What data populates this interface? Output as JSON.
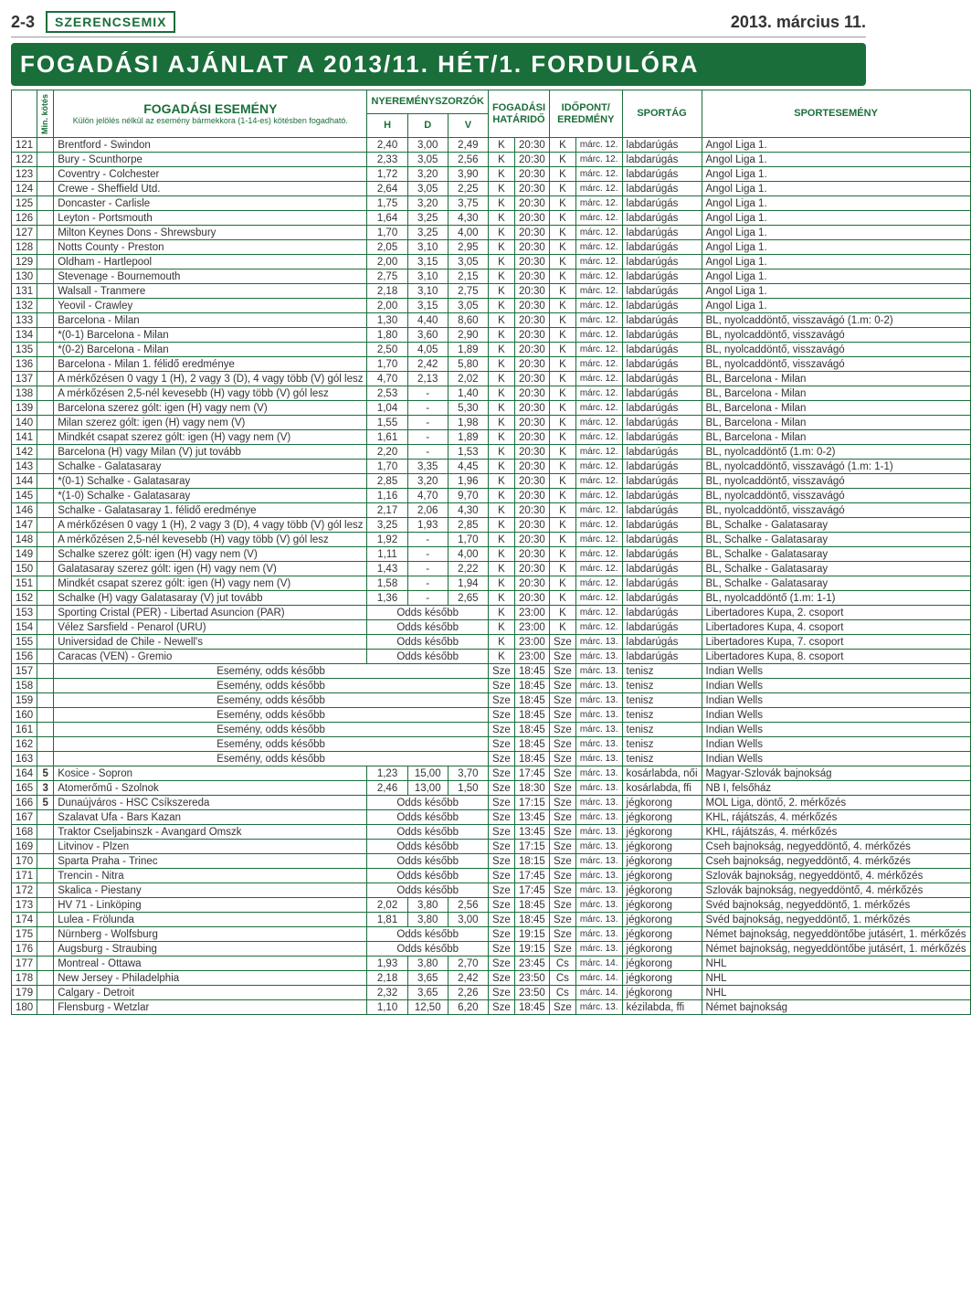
{
  "header": {
    "page_num": "2-3",
    "brand": "SZERENCSEMIX",
    "date": "2013. március 11."
  },
  "title": "FOGADÁSI AJÁNLAT A 2013/11. HÉT/1. FORDULÓRA",
  "columns": {
    "min": "Min. kötés",
    "event": "FOGADÁSI ESEMÉNY",
    "event_sub": "Külön jelölés nélkül az esemény bármekkora (1-14-es) kötésben fogadható.",
    "multipliers": "NYEREMÉNYSZORZÓK",
    "h": "H",
    "d": "D",
    "v": "V",
    "deadline": "FOGADÁSI HATÁRIDŐ",
    "result_time": "IDŐPONT/ EREDMÉNY",
    "sport": "SPORTÁG",
    "comp": "SPORTESEMÉNY"
  },
  "rows": [
    {
      "n": "121",
      "min": "",
      "e": "Brentford - Swindon",
      "h": "2,40",
      "d": "3,00",
      "v": "2,49",
      "d1": "K",
      "d2": "20:30",
      "r1": "K",
      "r2": "márc. 12.",
      "s": "labdarúgás",
      "c": "Angol Liga 1."
    },
    {
      "n": "122",
      "min": "",
      "e": "Bury - Scunthorpe",
      "h": "2,33",
      "d": "3,05",
      "v": "2,56",
      "d1": "K",
      "d2": "20:30",
      "r1": "K",
      "r2": "márc. 12.",
      "s": "labdarúgás",
      "c": "Angol Liga 1."
    },
    {
      "n": "123",
      "min": "",
      "e": "Coventry - Colchester",
      "h": "1,72",
      "d": "3,20",
      "v": "3,90",
      "d1": "K",
      "d2": "20:30",
      "r1": "K",
      "r2": "márc. 12.",
      "s": "labdarúgás",
      "c": "Angol Liga 1."
    },
    {
      "n": "124",
      "min": "",
      "e": "Crewe - Sheffield Utd.",
      "h": "2,64",
      "d": "3,05",
      "v": "2,25",
      "d1": "K",
      "d2": "20:30",
      "r1": "K",
      "r2": "márc. 12.",
      "s": "labdarúgás",
      "c": "Angol Liga 1."
    },
    {
      "n": "125",
      "min": "",
      "e": "Doncaster - Carlisle",
      "h": "1,75",
      "d": "3,20",
      "v": "3,75",
      "d1": "K",
      "d2": "20:30",
      "r1": "K",
      "r2": "márc. 12.",
      "s": "labdarúgás",
      "c": "Angol Liga 1."
    },
    {
      "n": "126",
      "min": "",
      "e": "Leyton - Portsmouth",
      "h": "1,64",
      "d": "3,25",
      "v": "4,30",
      "d1": "K",
      "d2": "20:30",
      "r1": "K",
      "r2": "márc. 12.",
      "s": "labdarúgás",
      "c": "Angol Liga 1."
    },
    {
      "n": "127",
      "min": "",
      "e": "Milton Keynes Dons - Shrewsbury",
      "h": "1,70",
      "d": "3,25",
      "v": "4,00",
      "d1": "K",
      "d2": "20:30",
      "r1": "K",
      "r2": "márc. 12.",
      "s": "labdarúgás",
      "c": "Angol Liga 1."
    },
    {
      "n": "128",
      "min": "",
      "e": "Notts County - Preston",
      "h": "2,05",
      "d": "3,10",
      "v": "2,95",
      "d1": "K",
      "d2": "20:30",
      "r1": "K",
      "r2": "márc. 12.",
      "s": "labdarúgás",
      "c": "Angol Liga 1."
    },
    {
      "n": "129",
      "min": "",
      "e": "Oldham - Hartlepool",
      "h": "2,00",
      "d": "3,15",
      "v": "3,05",
      "d1": "K",
      "d2": "20:30",
      "r1": "K",
      "r2": "márc. 12.",
      "s": "labdarúgás",
      "c": "Angol Liga 1."
    },
    {
      "n": "130",
      "min": "",
      "e": "Stevenage - Bournemouth",
      "h": "2,75",
      "d": "3,10",
      "v": "2,15",
      "d1": "K",
      "d2": "20:30",
      "r1": "K",
      "r2": "márc. 12.",
      "s": "labdarúgás",
      "c": "Angol Liga 1."
    },
    {
      "n": "131",
      "min": "",
      "e": "Walsall - Tranmere",
      "h": "2,18",
      "d": "3,10",
      "v": "2,75",
      "d1": "K",
      "d2": "20:30",
      "r1": "K",
      "r2": "márc. 12.",
      "s": "labdarúgás",
      "c": "Angol Liga 1."
    },
    {
      "n": "132",
      "min": "",
      "e": "Yeovil - Crawley",
      "h": "2,00",
      "d": "3,15",
      "v": "3,05",
      "d1": "K",
      "d2": "20:30",
      "r1": "K",
      "r2": "márc. 12.",
      "s": "labdarúgás",
      "c": "Angol Liga 1."
    },
    {
      "n": "133",
      "min": "",
      "e": "Barcelona - Milan",
      "h": "1,30",
      "d": "4,40",
      "v": "8,60",
      "d1": "K",
      "d2": "20:30",
      "r1": "K",
      "r2": "márc. 12.",
      "s": "labdarúgás",
      "c": "BL, nyolcaddöntő, visszavágó (1.m: 0-2)"
    },
    {
      "n": "134",
      "min": "",
      "e": "*(0-1) Barcelona - Milan",
      "h": "1,80",
      "d": "3,60",
      "v": "2,90",
      "d1": "K",
      "d2": "20:30",
      "r1": "K",
      "r2": "márc. 12.",
      "s": "labdarúgás",
      "c": "BL, nyolcaddöntő, visszavágó"
    },
    {
      "n": "135",
      "min": "",
      "e": "*(0-2) Barcelona - Milan",
      "h": "2,50",
      "d": "4,05",
      "v": "1,89",
      "d1": "K",
      "d2": "20:30",
      "r1": "K",
      "r2": "márc. 12.",
      "s": "labdarúgás",
      "c": "BL, nyolcaddöntő, visszavágó"
    },
    {
      "n": "136",
      "min": "",
      "e": "Barcelona - Milan 1. félidő eredménye",
      "h": "1,70",
      "d": "2,42",
      "v": "5,80",
      "d1": "K",
      "d2": "20:30",
      "r1": "K",
      "r2": "márc. 12.",
      "s": "labdarúgás",
      "c": "BL, nyolcaddöntő, visszavágó"
    },
    {
      "n": "137",
      "min": "",
      "e": "A mérkőzésen 0 vagy 1 (H), 2 vagy 3 (D), 4 vagy több (V) gól lesz",
      "h": "4,70",
      "d": "2,13",
      "v": "2,02",
      "d1": "K",
      "d2": "20:30",
      "r1": "K",
      "r2": "márc. 12.",
      "s": "labdarúgás",
      "c": "BL, Barcelona - Milan"
    },
    {
      "n": "138",
      "min": "",
      "e": "A mérkőzésen 2,5-nél kevesebb (H) vagy több (V) gól lesz",
      "h": "2,53",
      "d": "-",
      "v": "1,40",
      "d1": "K",
      "d2": "20:30",
      "r1": "K",
      "r2": "márc. 12.",
      "s": "labdarúgás",
      "c": "BL, Barcelona - Milan"
    },
    {
      "n": "139",
      "min": "",
      "e": "Barcelona szerez gólt: igen (H) vagy nem (V)",
      "h": "1,04",
      "d": "-",
      "v": "5,30",
      "d1": "K",
      "d2": "20:30",
      "r1": "K",
      "r2": "márc. 12.",
      "s": "labdarúgás",
      "c": "BL, Barcelona - Milan"
    },
    {
      "n": "140",
      "min": "",
      "e": "Milan szerez gólt: igen (H) vagy nem (V)",
      "h": "1,55",
      "d": "-",
      "v": "1,98",
      "d1": "K",
      "d2": "20:30",
      "r1": "K",
      "r2": "márc. 12.",
      "s": "labdarúgás",
      "c": "BL, Barcelona - Milan"
    },
    {
      "n": "141",
      "min": "",
      "e": "Mindkét csapat szerez gólt: igen (H) vagy nem (V)",
      "h": "1,61",
      "d": "-",
      "v": "1,89",
      "d1": "K",
      "d2": "20:30",
      "r1": "K",
      "r2": "márc. 12.",
      "s": "labdarúgás",
      "c": "BL, Barcelona - Milan"
    },
    {
      "n": "142",
      "min": "",
      "e": "Barcelona (H) vagy Milan (V) jut tovább",
      "h": "2,20",
      "d": "-",
      "v": "1,53",
      "d1": "K",
      "d2": "20:30",
      "r1": "K",
      "r2": "márc. 12.",
      "s": "labdarúgás",
      "c": "BL, nyolcaddöntő (1.m: 0-2)"
    },
    {
      "n": "143",
      "min": "",
      "e": "Schalke - Galatasaray",
      "h": "1,70",
      "d": "3,35",
      "v": "4,45",
      "d1": "K",
      "d2": "20:30",
      "r1": "K",
      "r2": "márc. 12.",
      "s": "labdarúgás",
      "c": "BL, nyolcaddöntő, visszavágó (1.m: 1-1)"
    },
    {
      "n": "144",
      "min": "",
      "e": "*(0-1) Schalke - Galatasaray",
      "h": "2,85",
      "d": "3,20",
      "v": "1,96",
      "d1": "K",
      "d2": "20:30",
      "r1": "K",
      "r2": "márc. 12.",
      "s": "labdarúgás",
      "c": "BL, nyolcaddöntő, visszavágó"
    },
    {
      "n": "145",
      "min": "",
      "e": "*(1-0) Schalke - Galatasaray",
      "h": "1,16",
      "d": "4,70",
      "v": "9,70",
      "d1": "K",
      "d2": "20:30",
      "r1": "K",
      "r2": "márc. 12.",
      "s": "labdarúgás",
      "c": "BL, nyolcaddöntő, visszavágó"
    },
    {
      "n": "146",
      "min": "",
      "e": "Schalke - Galatasaray 1. félidő eredménye",
      "h": "2,17",
      "d": "2,06",
      "v": "4,30",
      "d1": "K",
      "d2": "20:30",
      "r1": "K",
      "r2": "márc. 12.",
      "s": "labdarúgás",
      "c": "BL, nyolcaddöntő, visszavágó"
    },
    {
      "n": "147",
      "min": "",
      "e": "A mérkőzésen 0 vagy 1 (H), 2 vagy 3 (D), 4 vagy több (V) gól lesz",
      "h": "3,25",
      "d": "1,93",
      "v": "2,85",
      "d1": "K",
      "d2": "20:30",
      "r1": "K",
      "r2": "márc. 12.",
      "s": "labdarúgás",
      "c": "BL, Schalke - Galatasaray"
    },
    {
      "n": "148",
      "min": "",
      "e": "A mérkőzésen 2,5-nél kevesebb (H) vagy több (V) gól lesz",
      "h": "1,92",
      "d": "-",
      "v": "1,70",
      "d1": "K",
      "d2": "20:30",
      "r1": "K",
      "r2": "márc. 12.",
      "s": "labdarúgás",
      "c": "BL, Schalke - Galatasaray"
    },
    {
      "n": "149",
      "min": "",
      "e": "Schalke szerez gólt: igen (H) vagy nem (V)",
      "h": "1,11",
      "d": "-",
      "v": "4,00",
      "d1": "K",
      "d2": "20:30",
      "r1": "K",
      "r2": "márc. 12.",
      "s": "labdarúgás",
      "c": "BL, Schalke - Galatasaray"
    },
    {
      "n": "150",
      "min": "",
      "e": "Galatasaray szerez gólt: igen (H) vagy nem (V)",
      "h": "1,43",
      "d": "-",
      "v": "2,22",
      "d1": "K",
      "d2": "20:30",
      "r1": "K",
      "r2": "márc. 12.",
      "s": "labdarúgás",
      "c": "BL, Schalke - Galatasaray"
    },
    {
      "n": "151",
      "min": "",
      "e": "Mindkét csapat szerez gólt: igen (H) vagy nem (V)",
      "h": "1,58",
      "d": "-",
      "v": "1,94",
      "d1": "K",
      "d2": "20:30",
      "r1": "K",
      "r2": "márc. 12.",
      "s": "labdarúgás",
      "c": "BL, Schalke - Galatasaray"
    },
    {
      "n": "152",
      "min": "",
      "e": "Schalke (H) vagy Galatasaray (V) jut tovább",
      "h": "1,36",
      "d": "-",
      "v": "2,65",
      "d1": "K",
      "d2": "20:30",
      "r1": "K",
      "r2": "márc. 12.",
      "s": "labdarúgás",
      "c": "BL, nyolcaddöntő (1.m: 1-1)"
    },
    {
      "n": "153",
      "min": "",
      "e": "Sporting Cristal (PER) - Libertad Asuncion (PAR)",
      "odds": "Odds később",
      "d1": "K",
      "d2": "23:00",
      "r1": "K",
      "r2": "márc. 12.",
      "s": "labdarúgás",
      "c": "Libertadores Kupa, 2. csoport"
    },
    {
      "n": "154",
      "min": "",
      "e": "Vélez Sarsfield - Penarol (URU)",
      "odds": "Odds később",
      "d1": "K",
      "d2": "23:00",
      "r1": "K",
      "r2": "márc. 12.",
      "s": "labdarúgás",
      "c": "Libertadores Kupa, 4. csoport"
    },
    {
      "n": "155",
      "min": "",
      "e": "Universidad de Chile - Newell's",
      "odds": "Odds később",
      "d1": "K",
      "d2": "23:00",
      "r1": "Sze",
      "r2": "márc. 13.",
      "s": "labdarúgás",
      "c": "Libertadores Kupa, 7. csoport"
    },
    {
      "n": "156",
      "min": "",
      "e": "Caracas (VEN) - Gremio",
      "odds": "Odds később",
      "d1": "K",
      "d2": "23:00",
      "r1": "Sze",
      "r2": "márc. 13.",
      "s": "labdarúgás",
      "c": "Libertadores Kupa, 8. csoport"
    },
    {
      "n": "157",
      "min": "",
      "e": "",
      "eodds": "Esemény, odds később",
      "d1": "Sze",
      "d2": "18:45",
      "r1": "Sze",
      "r2": "márc. 13.",
      "s": "tenisz",
      "c": "Indian Wells"
    },
    {
      "n": "158",
      "min": "",
      "e": "",
      "eodds": "Esemény, odds később",
      "d1": "Sze",
      "d2": "18:45",
      "r1": "Sze",
      "r2": "márc. 13.",
      "s": "tenisz",
      "c": "Indian Wells"
    },
    {
      "n": "159",
      "min": "",
      "e": "",
      "eodds": "Esemény, odds később",
      "d1": "Sze",
      "d2": "18:45",
      "r1": "Sze",
      "r2": "márc. 13.",
      "s": "tenisz",
      "c": "Indian Wells"
    },
    {
      "n": "160",
      "min": "",
      "e": "",
      "eodds": "Esemény, odds később",
      "d1": "Sze",
      "d2": "18:45",
      "r1": "Sze",
      "r2": "márc. 13.",
      "s": "tenisz",
      "c": "Indian Wells"
    },
    {
      "n": "161",
      "min": "",
      "e": "",
      "eodds": "Esemény, odds később",
      "d1": "Sze",
      "d2": "18:45",
      "r1": "Sze",
      "r2": "márc. 13.",
      "s": "tenisz",
      "c": "Indian Wells"
    },
    {
      "n": "162",
      "min": "",
      "e": "",
      "eodds": "Esemény, odds később",
      "d1": "Sze",
      "d2": "18:45",
      "r1": "Sze",
      "r2": "márc. 13.",
      "s": "tenisz",
      "c": "Indian Wells"
    },
    {
      "n": "163",
      "min": "",
      "e": "",
      "eodds": "Esemény, odds később",
      "d1": "Sze",
      "d2": "18:45",
      "r1": "Sze",
      "r2": "márc. 13.",
      "s": "tenisz",
      "c": "Indian Wells"
    },
    {
      "n": "164",
      "min": "5",
      "e": "Kosice - Sopron",
      "h": "1,23",
      "d": "15,00",
      "v": "3,70",
      "d1": "Sze",
      "d2": "17:45",
      "r1": "Sze",
      "r2": "márc. 13.",
      "s": "kosárlabda, női",
      "c": "Magyar-Szlovák bajnokság"
    },
    {
      "n": "165",
      "min": "3",
      "e": "Atomerőmű - Szolnok",
      "h": "2,46",
      "d": "13,00",
      "v": "1,50",
      "d1": "Sze",
      "d2": "18:30",
      "r1": "Sze",
      "r2": "márc. 13.",
      "s": "kosárlabda, ffi",
      "c": "NB I, felsőház"
    },
    {
      "n": "166",
      "min": "5",
      "e": "Dunaújváros - HSC Csíkszereda",
      "odds": "Odds később",
      "d1": "Sze",
      "d2": "17:15",
      "r1": "Sze",
      "r2": "márc. 13.",
      "s": "jégkorong",
      "c": "MOL Liga, döntő, 2. mérkőzés"
    },
    {
      "n": "167",
      "min": "",
      "e": "Szalavat Ufa - Bars Kazan",
      "odds": "Odds később",
      "d1": "Sze",
      "d2": "13:45",
      "r1": "Sze",
      "r2": "márc. 13.",
      "s": "jégkorong",
      "c": "KHL, rájátszás, 4. mérkőzés"
    },
    {
      "n": "168",
      "min": "",
      "e": "Traktor Cseljabinszk - Avangard Omszk",
      "odds": "Odds később",
      "d1": "Sze",
      "d2": "13:45",
      "r1": "Sze",
      "r2": "márc. 13.",
      "s": "jégkorong",
      "c": "KHL, rájátszás, 4. mérkőzés"
    },
    {
      "n": "169",
      "min": "",
      "e": "Litvinov - Plzen",
      "odds": "Odds később",
      "d1": "Sze",
      "d2": "17:15",
      "r1": "Sze",
      "r2": "márc. 13.",
      "s": "jégkorong",
      "c": "Cseh bajnokság, negyeddöntő, 4. mérkőzés"
    },
    {
      "n": "170",
      "min": "",
      "e": "Sparta Praha - Trinec",
      "odds": "Odds később",
      "d1": "Sze",
      "d2": "18:15",
      "r1": "Sze",
      "r2": "márc. 13.",
      "s": "jégkorong",
      "c": "Cseh bajnokság, negyeddöntő, 4. mérkőzés"
    },
    {
      "n": "171",
      "min": "",
      "e": "Trencin - Nitra",
      "odds": "Odds később",
      "d1": "Sze",
      "d2": "17:45",
      "r1": "Sze",
      "r2": "márc. 13.",
      "s": "jégkorong",
      "c": "Szlovák bajnokság, negyeddöntő, 4. mérkőzés"
    },
    {
      "n": "172",
      "min": "",
      "e": "Skalica - Piestany",
      "odds": "Odds később",
      "d1": "Sze",
      "d2": "17:45",
      "r1": "Sze",
      "r2": "márc. 13.",
      "s": "jégkorong",
      "c": "Szlovák bajnokság, negyeddöntő, 4. mérkőzés"
    },
    {
      "n": "173",
      "min": "",
      "e": "HV 71 - Linköping",
      "h": "2,02",
      "d": "3,80",
      "v": "2,56",
      "d1": "Sze",
      "d2": "18:45",
      "r1": "Sze",
      "r2": "márc. 13.",
      "s": "jégkorong",
      "c": "Svéd bajnokság, negyeddöntő, 1. mérkőzés"
    },
    {
      "n": "174",
      "min": "",
      "e": "Lulea - Frölunda",
      "h": "1,81",
      "d": "3,80",
      "v": "3,00",
      "d1": "Sze",
      "d2": "18:45",
      "r1": "Sze",
      "r2": "márc. 13.",
      "s": "jégkorong",
      "c": "Svéd bajnokság, negyeddöntő, 1. mérkőzés"
    },
    {
      "n": "175",
      "min": "",
      "e": "Nürnberg - Wolfsburg",
      "odds": "Odds később",
      "d1": "Sze",
      "d2": "19:15",
      "r1": "Sze",
      "r2": "márc. 13.",
      "s": "jégkorong",
      "c": "Német bajnokság, negyeddöntőbe jutásért, 1. mérkőzés"
    },
    {
      "n": "176",
      "min": "",
      "e": "Augsburg - Straubing",
      "odds": "Odds később",
      "d1": "Sze",
      "d2": "19:15",
      "r1": "Sze",
      "r2": "márc. 13.",
      "s": "jégkorong",
      "c": "Német bajnokság, negyeddöntőbe jutásért, 1. mérkőzés"
    },
    {
      "n": "177",
      "min": "",
      "e": "Montreal - Ottawa",
      "h": "1,93",
      "d": "3,80",
      "v": "2,70",
      "d1": "Sze",
      "d2": "23:45",
      "r1": "Cs",
      "r2": "márc. 14.",
      "s": "jégkorong",
      "c": "NHL"
    },
    {
      "n": "178",
      "min": "",
      "e": "New Jersey - Philadelphia",
      "h": "2,18",
      "d": "3,65",
      "v": "2,42",
      "d1": "Sze",
      "d2": "23:50",
      "r1": "Cs",
      "r2": "márc. 14.",
      "s": "jégkorong",
      "c": "NHL"
    },
    {
      "n": "179",
      "min": "",
      "e": "Calgary - Detroit",
      "h": "2,32",
      "d": "3,65",
      "v": "2,26",
      "d1": "Sze",
      "d2": "23:50",
      "r1": "Cs",
      "r2": "márc. 14.",
      "s": "jégkorong",
      "c": "NHL"
    },
    {
      "n": "180",
      "min": "",
      "e": "Flensburg - Wetzlar",
      "h": "1,10",
      "d": "12,50",
      "v": "6,20",
      "d1": "Sze",
      "d2": "18:45",
      "r1": "Sze",
      "r2": "márc. 13.",
      "s": "kézilabda, ffi",
      "c": "Német bajnokság"
    }
  ]
}
